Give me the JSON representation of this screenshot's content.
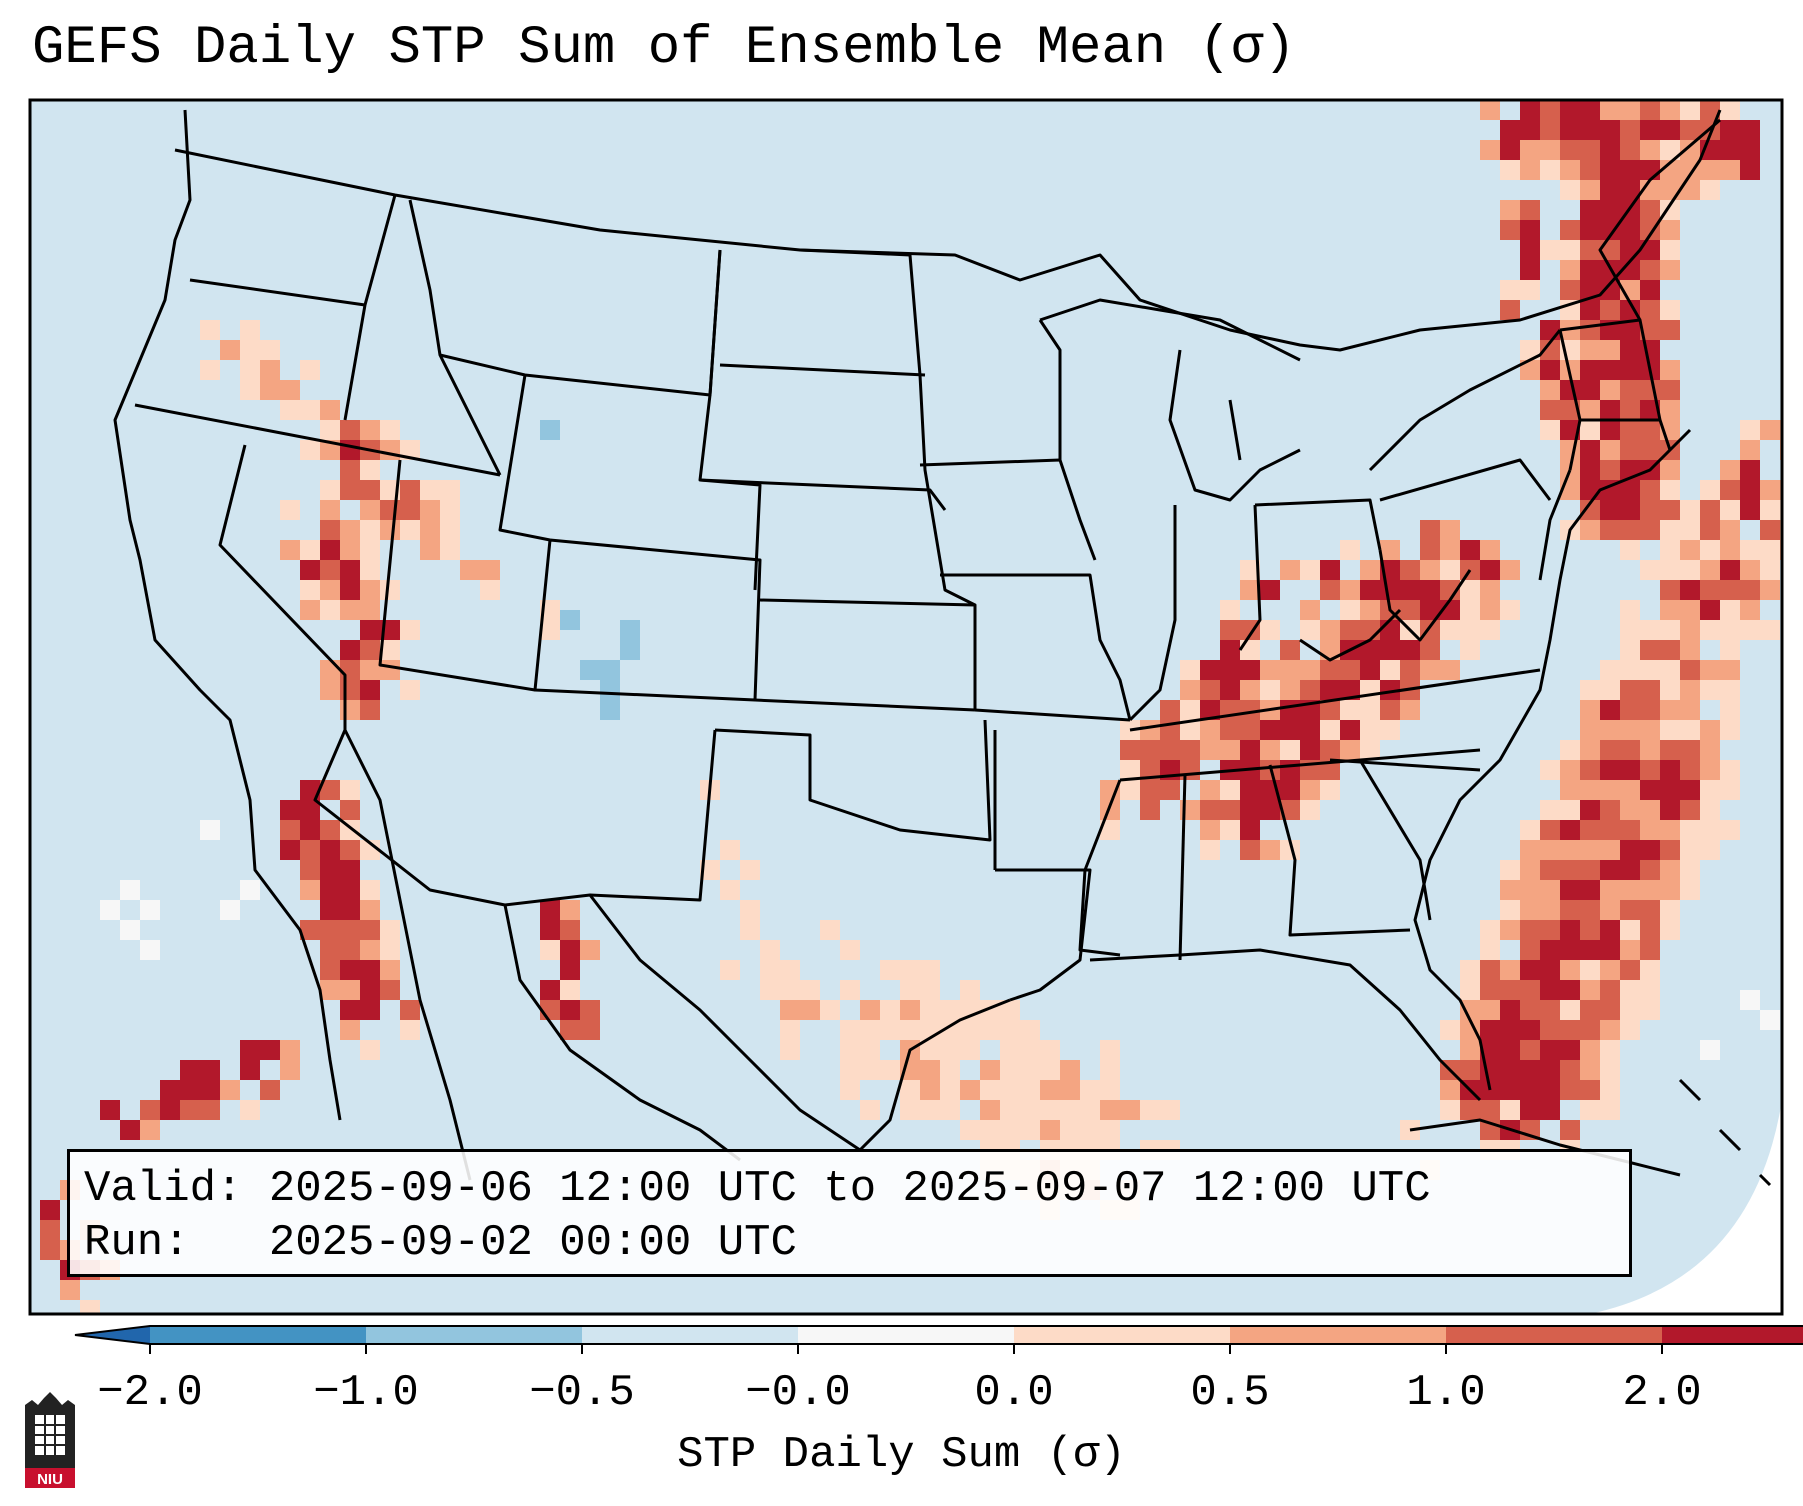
{
  "title": "GEFS Daily STP Sum of Ensemble Mean (σ)",
  "info": {
    "valid": "Valid: 2025-09-06 12:00 UTC to 2025-09-07 12:00 UTC",
    "run": "Run:   2025-09-02 00:00 UTC"
  },
  "colorbar": {
    "label": "STP Daily Sum (σ)",
    "ticks": [
      "−2.0",
      "−1.0",
      "−0.5",
      "−0.0",
      "0.0",
      "0.5",
      "1.0",
      "2.0"
    ],
    "colors": [
      "#4393c3",
      "#92c5de",
      "#d1e5f0",
      "#f7f7f7",
      "#fddbc7",
      "#f4a582",
      "#d6604d",
      "#b2182b"
    ],
    "under_color": "#2166ac",
    "over_color": "#b2182b"
  },
  "map": {
    "background_color": "#d1e5f0",
    "anomaly_regions": [
      {
        "region": "northeast",
        "level": "high"
      },
      {
        "region": "appalachians",
        "level": "high"
      },
      {
        "region": "atlantic-offshore",
        "level": "high"
      },
      {
        "region": "pacific-northwest-interior",
        "level": "moderate"
      },
      {
        "region": "great-basin",
        "level": "moderate"
      },
      {
        "region": "southern-california",
        "level": "moderate"
      },
      {
        "region": "west-texas",
        "level": "low"
      },
      {
        "region": "gulf-coast",
        "level": "low"
      },
      {
        "region": "colorado",
        "level": "negative"
      }
    ]
  },
  "logo": {
    "text": "NIU"
  }
}
